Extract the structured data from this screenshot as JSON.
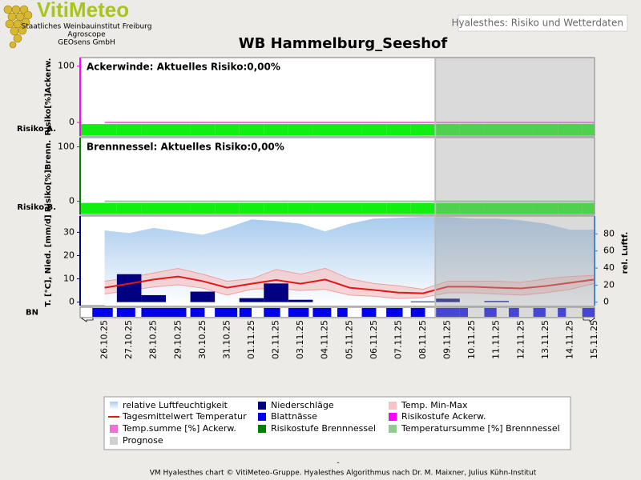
{
  "header": {
    "logo_title": "VitiMeteo",
    "logo_lines": [
      "Staatliches Weinbauinstitut Freiburg",
      "Agroscope",
      "GEOsens GmbH"
    ],
    "app_label": "Hyalesthes: Risiko und Wetterdaten",
    "title": "WB Hammelburg_Seeshof"
  },
  "footer": {
    "mark": "-",
    "text": "VM Hyalesthes chart © VitiMeteo-Gruppe. Hyalesthes Algorithmus nach Dr. M. Maixner, Julius Kühn-Institut"
  },
  "chart_data": [
    {
      "type": "risk",
      "title": "Ackerwinde: Aktuelles Risiko:0,00%",
      "ylabel": "Risiko[%]Ackerw.",
      "level_label": "Risiko A.",
      "ylim": [
        -24,
        115
      ],
      "yticks": [
        0,
        100
      ],
      "series": [
        {
          "name": "Temp.summe [%] Ackerw.",
          "color": "#f070d8",
          "values": [
            0,
            0,
            0,
            0,
            0,
            0,
            0,
            0,
            0,
            0,
            0,
            0,
            0,
            0,
            0,
            0,
            0,
            0,
            0,
            0,
            0
          ]
        }
      ],
      "level": {
        "name": "Risikostufe Ackerw.",
        "color": "#ff00ff",
        "level_colors": [
          "#11ee11"
        ],
        "values": [
          0,
          0,
          0,
          0,
          0,
          0,
          0,
          0,
          0,
          0,
          0,
          0,
          0,
          0,
          0,
          0,
          0,
          0,
          0,
          0,
          0
        ]
      }
    },
    {
      "type": "risk",
      "title": "Brennnessel: Aktuelles Risiko:0,00%",
      "ylabel": "Risiko[%]Brenn.",
      "level_label": "Risiko B.",
      "ylim": [
        -24,
        117
      ],
      "yticks": [
        0,
        100
      ],
      "series": [
        {
          "name": "Temperatursumme [%] Brennnessel",
          "color": "#90cc90",
          "values": [
            0,
            0,
            0,
            0,
            0,
            0,
            0,
            0,
            0,
            0,
            0,
            0,
            0,
            0,
            0,
            0,
            0,
            0,
            0,
            0,
            0
          ]
        }
      ],
      "level": {
        "name": "Risikostufe Brennnessel",
        "color": "#008000",
        "level_colors": [
          "#11ee11"
        ],
        "values": [
          0,
          0,
          0,
          0,
          0,
          0,
          0,
          0,
          0,
          0,
          0,
          0,
          0,
          0,
          0,
          0,
          0,
          0,
          0,
          0,
          0
        ]
      }
    },
    {
      "type": "weather",
      "ylabel": "T. [°C], Nied. [mm/d]",
      "y2label": "rel. Luftf.",
      "strip_label": "BN",
      "categories": [
        "26.10.25",
        "27.10.25",
        "28.10.25",
        "29.10.25",
        "30.10.25",
        "31.10.25",
        "01.11.25",
        "02.11.25",
        "03.11.25",
        "04.11.25",
        "05.11.25",
        "06.11.25",
        "07.11.25",
        "08.11.25",
        "09.11.25",
        "10.11.25",
        "11.11.25",
        "12.11.25",
        "13.11.25",
        "14.11.25",
        "15.11.25"
      ],
      "ylim": [
        -1.5,
        37
      ],
      "yticks": [
        0,
        10,
        20,
        30
      ],
      "y2lim": [
        -4,
        101
      ],
      "y2ticks": [
        0,
        20,
        40,
        60,
        80
      ],
      "series": [
        {
          "name": "relative Luftfeuchtigkeit",
          "kind": "area",
          "axis": "y2",
          "color": "#a8cbee",
          "values": [
            84,
            81,
            87,
            83,
            79,
            87,
            97,
            95,
            92,
            83,
            92,
            98,
            99,
            100,
            100,
            98,
            98,
            96,
            92,
            85,
            85
          ]
        },
        {
          "name": "Niederschläge",
          "kind": "bar",
          "color": "#000080",
          "values": [
            0,
            12,
            3,
            0,
            4.5,
            0,
            1.7,
            8,
            1,
            0,
            0,
            0,
            0,
            0.3,
            1.5,
            0,
            0.5,
            0,
            0,
            0,
            0
          ]
        },
        {
          "name": "Temp. Min-Max",
          "kind": "band",
          "color": "#f6c4c4",
          "low": [
            3.5,
            5,
            6.5,
            7.5,
            6,
            3,
            5.5,
            6,
            5,
            5.5,
            3,
            2.5,
            1.5,
            2,
            4,
            4,
            3.5,
            3,
            4,
            5.5,
            8
          ],
          "high": [
            9,
            10.5,
            12.5,
            14.5,
            12,
            9,
            10,
            14,
            12,
            14.5,
            10,
            8,
            7,
            5.5,
            9,
            9,
            9,
            8.5,
            10,
            11,
            11.5
          ]
        },
        {
          "name": "Tagesmittelwert Temperatur",
          "kind": "line",
          "color": "#e01818",
          "values": [
            6.2,
            7.9,
            9.7,
            11,
            9,
            6.2,
            7.9,
            9.5,
            7.9,
            9.7,
            6.2,
            5.2,
            4.1,
            3.8,
            6.6,
            6.6,
            6.2,
            5.9,
            6.9,
            8.3,
            9.7
          ]
        },
        {
          "name": "Blattnässe",
          "kind": "strip",
          "color": "#0000ee",
          "values": [
            20,
            18,
            24,
            20,
            14,
            22,
            12,
            16,
            20,
            18,
            10,
            14,
            16,
            14,
            24,
            8,
            12,
            10,
            12,
            8,
            12
          ]
        }
      ],
      "forecast": {
        "name": "Prognose",
        "color": "#d0d0d0",
        "from": "09.11.25"
      }
    }
  ]
}
